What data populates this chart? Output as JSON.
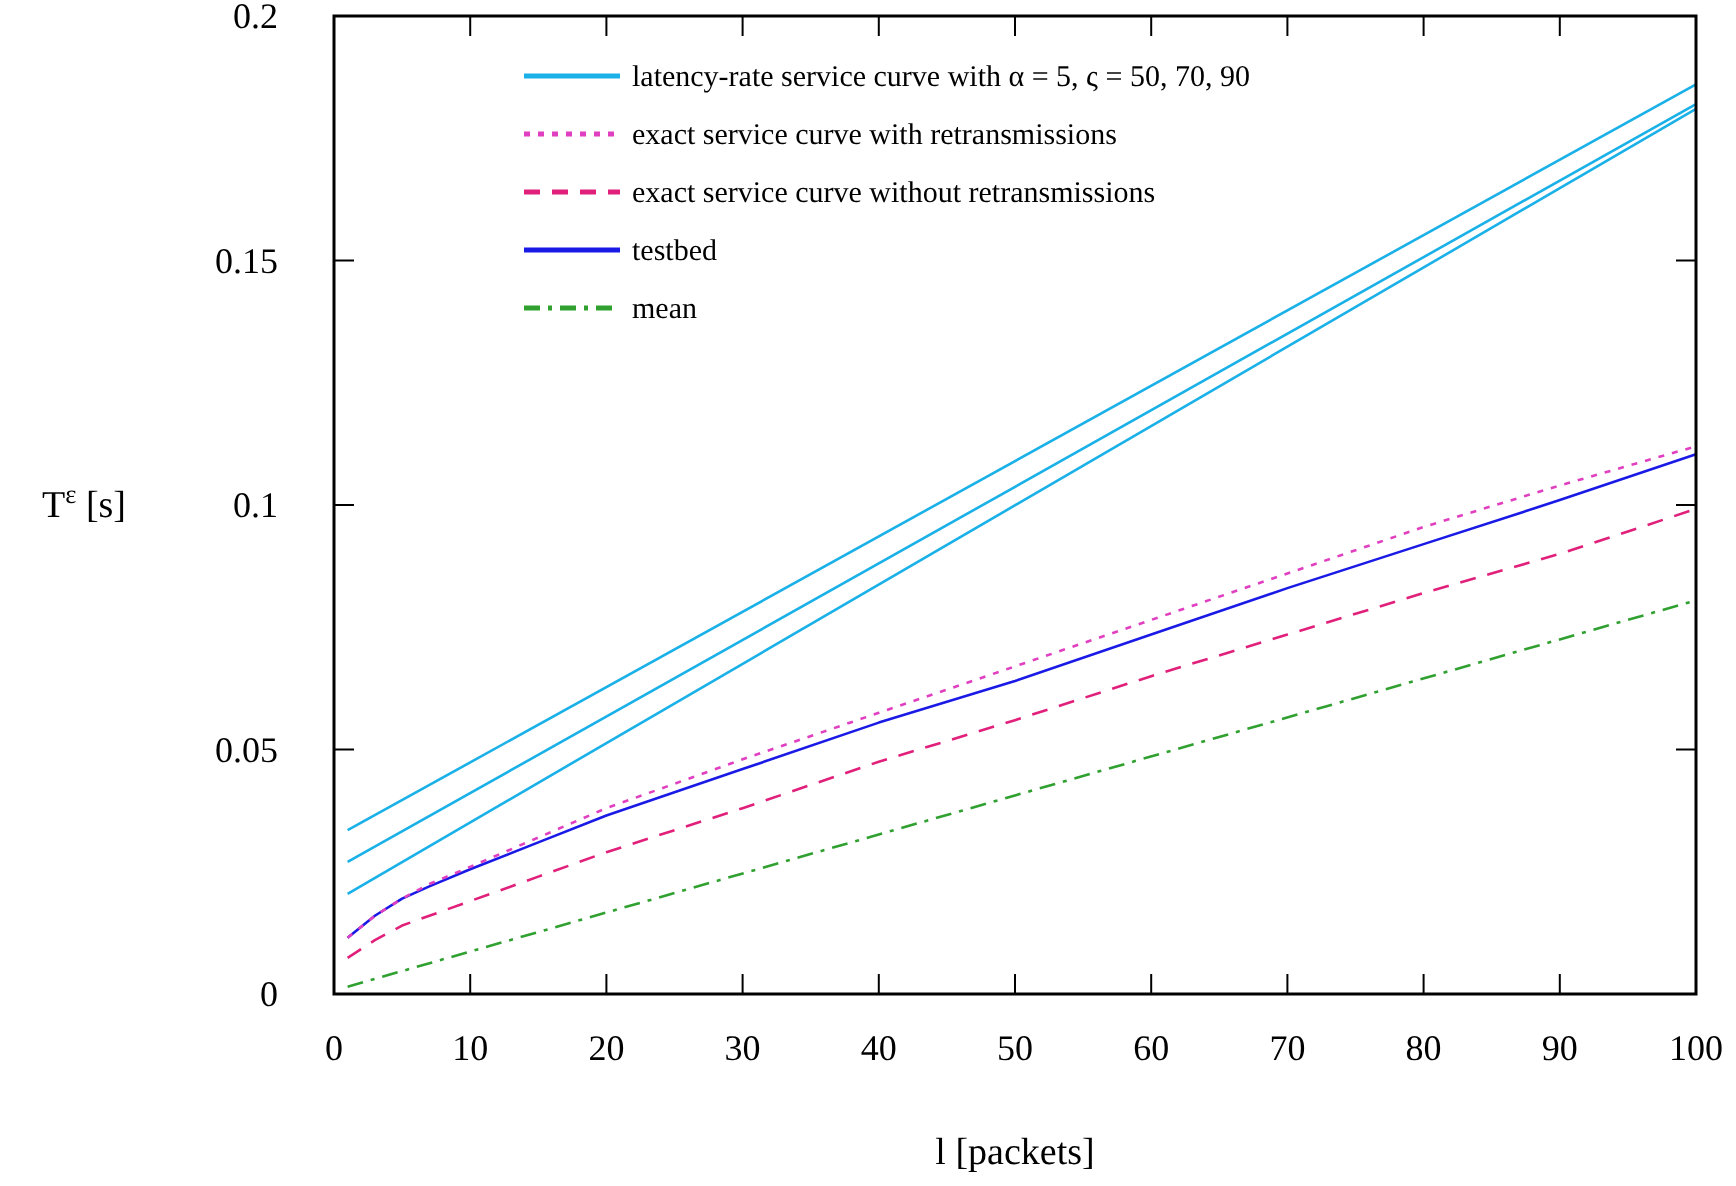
{
  "chart_data": {
    "type": "line",
    "xlabel": "l [packets]",
    "ylabel": "T$^{ε}$ [s]",
    "x": [
      1,
      100
    ],
    "xlim": [
      0,
      100
    ],
    "xticks": [
      0,
      10,
      20,
      30,
      40,
      50,
      60,
      70,
      80,
      90,
      100
    ],
    "ylim": [
      0,
      0.2
    ],
    "yticks": [
      0,
      0.05,
      0.1,
      0.15,
      0.2
    ],
    "grid": false,
    "legend": "top left",
    "marker": "none",
    "series": [
      {
        "name": "latency-rate service curve with α = 5, ς = 50, 70, 90",
        "color": "#1ab0e8",
        "line_style": "solid",
        "values": [
          0.0335,
          0.186
        ]
      },
      {
        "color": "#1ab0e8",
        "line_style": "solid",
        "values": [
          0.027,
          0.182
        ]
      },
      {
        "color": "#1ab0e8",
        "line_style": "solid",
        "values": [
          0.0205,
          0.181
        ]
      },
      {
        "name": "exact service curve with retransmissions",
        "color": "#e040c0",
        "line_style": "dotted",
        "x": [
          1,
          3,
          5,
          7,
          10,
          15,
          20,
          30,
          40,
          50,
          60,
          70,
          80,
          90,
          100
        ],
        "values": [
          0.0115,
          0.016,
          0.0195,
          0.0225,
          0.026,
          0.032,
          0.038,
          0.048,
          0.0575,
          0.067,
          0.0765,
          0.086,
          0.0955,
          0.104,
          0.112
        ]
      },
      {
        "name": "exact service curve without retransmissions",
        "color": "#e0207a",
        "line_style": "dashed",
        "x": [
          1,
          3,
          5,
          7,
          10,
          15,
          20,
          30,
          40,
          50,
          60,
          70,
          80,
          90,
          100
        ],
        "values": [
          0.0074,
          0.011,
          0.014,
          0.016,
          0.019,
          0.024,
          0.029,
          0.038,
          0.0475,
          0.056,
          0.065,
          0.0735,
          0.082,
          0.09,
          0.0992
        ]
      },
      {
        "name": "testbed",
        "color": "#1a1ae6",
        "line_style": "solid",
        "x": [
          1,
          3,
          5,
          7,
          10,
          15,
          20,
          30,
          40,
          50,
          60,
          70,
          80,
          90,
          100
        ],
        "values": [
          0.0115,
          0.016,
          0.0195,
          0.022,
          0.0255,
          0.031,
          0.0365,
          0.046,
          0.0555,
          0.064,
          0.0735,
          0.083,
          0.092,
          0.101,
          0.1104
        ]
      },
      {
        "name": "mean",
        "color": "#30a030",
        "line_style": "dashdot",
        "values": [
          0.0015,
          0.0805
        ]
      }
    ]
  }
}
